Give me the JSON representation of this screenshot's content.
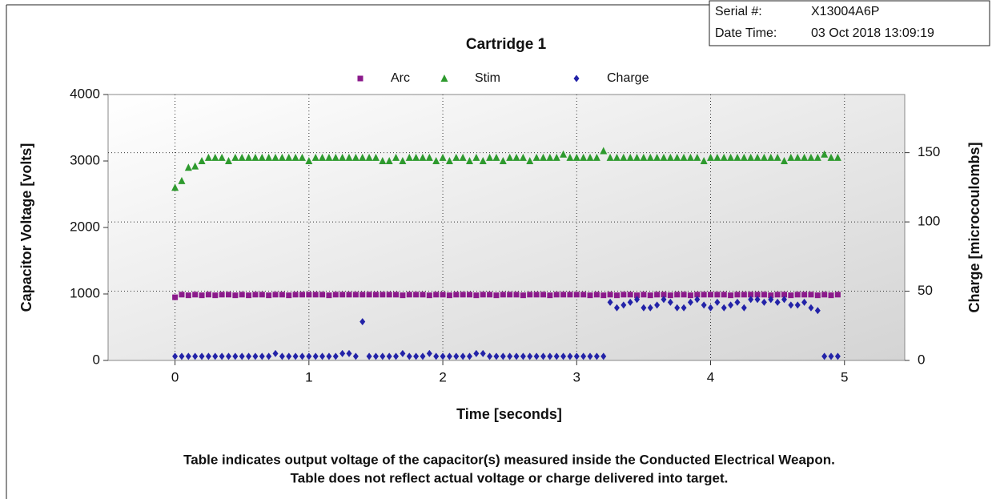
{
  "info": {
    "serial_label": "Serial #:",
    "serial": "X13004A6P",
    "date_label": "Date Time:",
    "date": "03 Oct 2018 13:09:19"
  },
  "chart_data": {
    "type": "scatter",
    "title": "Cartridge 1",
    "xlabel": "Time [seconds]",
    "ylabel": "Capacitor Voltage [volts]",
    "y2label": "Charge [microcoulombs]",
    "xlim": [
      -0.5,
      5.45
    ],
    "xticks": [
      0,
      1,
      2,
      3,
      4,
      5
    ],
    "ylim": [
      0,
      4000
    ],
    "yticks": [
      0,
      1000,
      2000,
      3000,
      4000
    ],
    "y2lim": [
      0,
      192
    ],
    "y2ticks": [
      0,
      50,
      100,
      150
    ],
    "grid": true,
    "legend": "top",
    "x": [
      0,
      0.05,
      0.1,
      0.15,
      0.2,
      0.25,
      0.3,
      0.35,
      0.4,
      0.45,
      0.5,
      0.55,
      0.6,
      0.65,
      0.7,
      0.75,
      0.8,
      0.85,
      0.9,
      0.95,
      1,
      1.05,
      1.1,
      1.15,
      1.2,
      1.25,
      1.3,
      1.35,
      1.4,
      1.45,
      1.5,
      1.55,
      1.6,
      1.65,
      1.7,
      1.75,
      1.8,
      1.85,
      1.9,
      1.95,
      2,
      2.05,
      2.1,
      2.15,
      2.2,
      2.25,
      2.3,
      2.35,
      2.4,
      2.45,
      2.5,
      2.55,
      2.6,
      2.65,
      2.7,
      2.75,
      2.8,
      2.85,
      2.9,
      2.95,
      3,
      3.05,
      3.1,
      3.15,
      3.2,
      3.25,
      3.3,
      3.35,
      3.4,
      3.45,
      3.5,
      3.55,
      3.6,
      3.65,
      3.7,
      3.75,
      3.8,
      3.85,
      3.9,
      3.95,
      4,
      4.05,
      4.1,
      4.15,
      4.2,
      4.25,
      4.3,
      4.35,
      4.4,
      4.45,
      4.5,
      4.55,
      4.6,
      4.65,
      4.7,
      4.75,
      4.8,
      4.85,
      4.9,
      4.95
    ],
    "series": [
      {
        "name": "Arc",
        "color": "#8b1a8b",
        "marker": "square",
        "values": [
          950,
          990,
          980,
          990,
          980,
          990,
          980,
          990,
          990,
          980,
          990,
          980,
          990,
          990,
          980,
          990,
          990,
          980,
          990,
          990,
          990,
          990,
          990,
          980,
          990,
          990,
          990,
          990,
          990,
          990,
          990,
          990,
          990,
          990,
          980,
          990,
          990,
          990,
          980,
          990,
          990,
          980,
          990,
          990,
          990,
          980,
          990,
          990,
          980,
          990,
          990,
          990,
          980,
          990,
          990,
          990,
          980,
          990,
          990,
          990,
          990,
          990,
          980,
          990,
          980,
          990,
          980,
          990,
          990,
          980,
          990,
          980,
          990,
          990,
          980,
          990,
          990,
          980,
          990,
          990,
          990,
          990,
          990,
          980,
          990,
          990,
          990,
          990,
          990,
          980,
          990,
          990,
          980,
          990,
          990,
          990,
          980,
          990,
          980,
          990
        ]
      },
      {
        "name": "Stim",
        "color": "#2e9a2e",
        "marker": "triangle",
        "values": [
          2600,
          2700,
          2900,
          2920,
          3000,
          3050,
          3050,
          3050,
          3000,
          3050,
          3050,
          3050,
          3050,
          3050,
          3050,
          3050,
          3050,
          3050,
          3050,
          3050,
          3000,
          3050,
          3050,
          3050,
          3050,
          3050,
          3050,
          3050,
          3050,
          3050,
          3050,
          3000,
          3000,
          3050,
          3000,
          3050,
          3050,
          3050,
          3050,
          3000,
          3050,
          3000,
          3050,
          3050,
          3000,
          3050,
          3000,
          3050,
          3050,
          3000,
          3050,
          3050,
          3050,
          3000,
          3050,
          3050,
          3050,
          3050,
          3100,
          3050,
          3050,
          3050,
          3050,
          3050,
          3150,
          3050,
          3050,
          3050,
          3050,
          3050,
          3050,
          3050,
          3050,
          3050,
          3050,
          3050,
          3050,
          3050,
          3050,
          3000,
          3050,
          3050,
          3050,
          3050,
          3050,
          3050,
          3050,
          3050,
          3050,
          3050,
          3050,
          3000,
          3050,
          3050,
          3050,
          3050,
          3050,
          3100,
          3050,
          3050
        ]
      },
      {
        "name": "Charge",
        "color": "#2323a8",
        "marker": "diamond",
        "axis": "y2",
        "values": [
          3,
          3,
          3,
          3,
          3,
          3,
          3,
          3,
          3,
          3,
          3,
          3,
          3,
          3,
          3,
          5,
          3,
          3,
          3,
          3,
          3,
          3,
          3,
          3,
          3,
          5,
          5,
          3,
          28,
          3,
          3,
          3,
          3,
          3,
          5,
          3,
          3,
          3,
          5,
          3,
          3,
          3,
          3,
          3,
          3,
          5,
          5,
          3,
          3,
          3,
          3,
          3,
          3,
          3,
          3,
          3,
          3,
          3,
          3,
          3,
          3,
          3,
          3,
          3,
          3,
          42,
          38,
          40,
          42,
          44,
          38,
          38,
          40,
          44,
          42,
          38,
          38,
          42,
          44,
          40,
          38,
          42,
          38,
          40,
          42,
          38,
          44,
          44,
          42,
          44,
          42,
          44,
          40,
          40,
          42,
          38,
          36,
          3,
          3,
          3
        ]
      }
    ],
    "footnotes": [
      "Table indicates output voltage of the capacitor(s) measured inside the Conducted Electrical Weapon.",
      "Table does not reflect actual voltage or charge delivered into target."
    ]
  }
}
